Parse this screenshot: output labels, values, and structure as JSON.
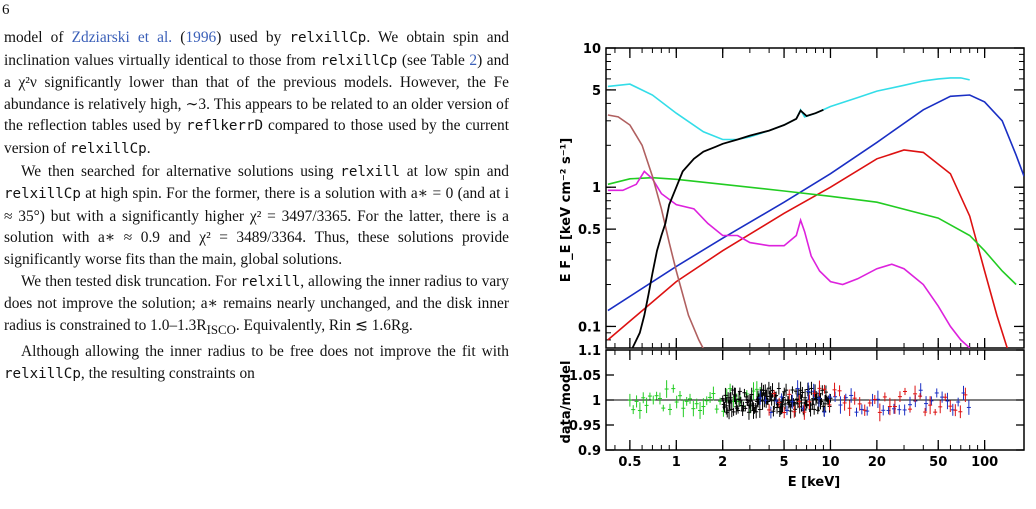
{
  "page": {
    "number": "6"
  },
  "text": {
    "p1": {
      "a": "model of ",
      "cite_text": "Zdziarski et al.",
      "b": " (",
      "cite_year": "1996",
      "c": ") used by ",
      "code1": "relxillCp",
      "d": ". We obtain spin and inclination values virtually identical to those from ",
      "code2": "relxillCp",
      "e": " (see Table ",
      "table_ref": "2",
      "f": ") and a χ²ν significantly lower than that of the previous models. However, the Fe abundance is relatively high, ∼3. This appears to be related to an older version of the reflection tables used by ",
      "code3": "reflkerrD",
      "g": " compared to those used by the current version of ",
      "code4": "relxillCp",
      "h": "."
    },
    "p2": {
      "a": "We then searched for alternative solutions using ",
      "code1": "relxill",
      "b": " at low spin and ",
      "code2": "relxillCp",
      "c": " at high spin. For the former, there is a solution with a∗ = 0 (and at i ≈ 35°) but with a significantly higher χ² = 3497/3365. For the latter, there is a solution with a∗ ≈ 0.9 and χ² = 3489/3364. Thus, these solutions provide significantly worse fits than the main, global solutions."
    },
    "p3": {
      "a": "We then tested disk truncation. For ",
      "code1": "relxill",
      "b": ", allowing the inner radius to vary does not improve the solution; a∗ remains nearly unchanged, and the disk inner radius is constrained to 1.0–1.3R",
      "sub": "ISCO",
      "c": ". Equivalently, Rin ≲ 1.6Rg."
    },
    "p4": {
      "a": "Although allowing the inner radius to be free does not improve the fit with ",
      "code1": "relxillCp",
      "b": ", the resulting constraints on"
    }
  },
  "chart_data": {
    "type": "line",
    "x_scale": "log",
    "y_scale": "log",
    "xlim": [
      0.35,
      180
    ],
    "ylim": [
      0.07,
      10
    ],
    "xlabel": "E  [keV]",
    "ylabel": "E F_E [keV cm⁻² s⁻¹]",
    "xticks": [
      0.5,
      1,
      2,
      5,
      10,
      20,
      50,
      100
    ],
    "xtick_labels": [
      "0.5",
      "1",
      "2",
      "5",
      "10",
      "20",
      "50",
      "100"
    ],
    "yticks": [
      0.1,
      0.5,
      1,
      5,
      10
    ],
    "ytick_labels": [
      "0.1",
      "0.5",
      "1",
      "5",
      "10"
    ],
    "colors": {
      "total": "#33dde8",
      "data": "#000000",
      "blue": "#1a2fc4",
      "red": "#dd1111",
      "green": "#22cc22",
      "magenta": "#dd22dd",
      "brown": "#b06060"
    },
    "series": [
      {
        "color": "total",
        "x": [
          0.36,
          0.5,
          0.7,
          1.0,
          1.5,
          2.0,
          2.5,
          3.0,
          4.0,
          5.0,
          6.0,
          6.4,
          6.8,
          8.0,
          10,
          15,
          20,
          30,
          40,
          50,
          60,
          70,
          80
        ],
        "y": [
          5.3,
          5.5,
          4.6,
          3.4,
          2.5,
          2.2,
          2.2,
          2.3,
          2.55,
          2.8,
          3.1,
          3.6,
          3.2,
          3.4,
          3.8,
          4.4,
          4.9,
          5.4,
          5.8,
          6.0,
          6.1,
          6.1,
          5.9
        ]
      },
      {
        "color": "blue",
        "x": [
          0.36,
          1,
          2,
          5,
          10,
          20,
          40,
          60,
          80,
          100,
          130,
          160,
          180
        ],
        "y": [
          0.13,
          0.27,
          0.43,
          0.78,
          1.25,
          2.1,
          3.6,
          4.5,
          4.6,
          4.1,
          3.0,
          1.7,
          1.2
        ]
      },
      {
        "color": "red",
        "x": [
          0.36,
          1,
          2,
          5,
          10,
          20,
          30,
          40,
          60,
          80,
          100,
          120,
          140,
          160
        ],
        "y": [
          0.08,
          0.21,
          0.35,
          0.65,
          1.0,
          1.6,
          1.85,
          1.78,
          1.25,
          0.62,
          0.25,
          0.12,
          0.07,
          0.05
        ]
      },
      {
        "color": "green",
        "x": [
          0.36,
          0.5,
          0.7,
          1,
          2,
          5,
          10,
          20,
          50,
          80,
          100,
          130,
          160
        ],
        "y": [
          1.05,
          1.15,
          1.17,
          1.14,
          1.05,
          0.94,
          0.86,
          0.78,
          0.6,
          0.45,
          0.35,
          0.25,
          0.2
        ]
      },
      {
        "color": "magenta",
        "x": [
          0.36,
          0.45,
          0.55,
          0.62,
          0.7,
          0.8,
          1.0,
          1.3,
          1.6,
          2.0,
          2.5,
          3.0,
          4.0,
          5.0,
          6.0,
          6.4,
          6.8,
          7.5,
          8.5,
          10,
          12,
          15,
          20,
          25,
          30,
          40,
          50,
          60,
          70,
          80
        ],
        "y": [
          0.95,
          0.95,
          1.05,
          1.3,
          1.15,
          0.9,
          0.75,
          0.7,
          0.55,
          0.45,
          0.45,
          0.4,
          0.38,
          0.38,
          0.45,
          0.58,
          0.48,
          0.32,
          0.25,
          0.21,
          0.2,
          0.22,
          0.26,
          0.28,
          0.26,
          0.2,
          0.14,
          0.1,
          0.08,
          0.07
        ]
      },
      {
        "color": "brown",
        "x": [
          0.36,
          0.42,
          0.5,
          0.6,
          0.7,
          0.8,
          0.9,
          1.0,
          1.2,
          1.4,
          1.6
        ],
        "y": [
          3.3,
          3.2,
          2.8,
          2.0,
          1.2,
          0.7,
          0.4,
          0.25,
          0.12,
          0.08,
          0.06
        ]
      },
      {
        "color": "data",
        "x": [
          0.52,
          0.58,
          0.62,
          0.66,
          0.7,
          0.75,
          0.8,
          0.85,
          0.9,
          1.0,
          1.1,
          1.3,
          1.5,
          1.8,
          2.0,
          2.5,
          3.0,
          4.0,
          5.0,
          6.0,
          6.4,
          7.0,
          8.0,
          9.0
        ],
        "y": [
          0.07,
          0.09,
          0.12,
          0.17,
          0.24,
          0.35,
          0.45,
          0.55,
          0.75,
          1.0,
          1.3,
          1.6,
          1.8,
          1.95,
          2.05,
          2.2,
          2.35,
          2.55,
          2.8,
          3.1,
          3.55,
          3.25,
          3.4,
          3.6
        ]
      }
    ],
    "residuals": {
      "ylabel": "data/model",
      "ylim": [
        0.9,
        1.1
      ],
      "yticks": [
        0.9,
        0.95,
        1,
        1.05,
        1.1
      ],
      "ytick_labels": [
        "0.9",
        "0.95",
        "1",
        "1.05",
        "1.1"
      ],
      "groups": [
        {
          "color": "green",
          "x_range": [
            0.5,
            3.5
          ]
        },
        {
          "color": "data",
          "x_range": [
            2.0,
            10.0
          ]
        },
        {
          "color": "blue",
          "x_range": [
            3.5,
            79
          ]
        },
        {
          "color": "red",
          "x_range": [
            4.0,
            75
          ]
        }
      ]
    }
  }
}
